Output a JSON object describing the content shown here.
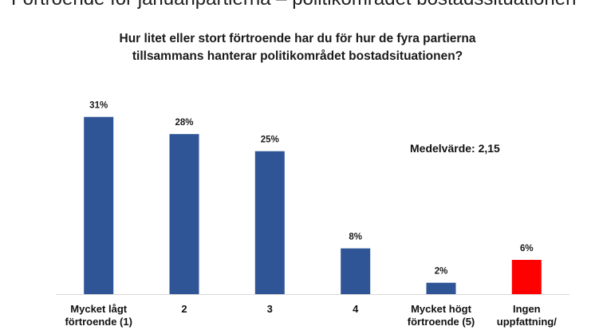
{
  "slide": {
    "title": "Förtroende för januaripartierna – politikområdet bostadssituationen"
  },
  "chart_data": {
    "type": "bar",
    "title_lines": [
      "Hur litet eller stort förtroende har du för hur de fyra partierna",
      "tillsammans hanterar politikområdet bostadsituationen?"
    ],
    "categories": [
      [
        "Mycket lågt",
        "förtroende (1)"
      ],
      [
        "2"
      ],
      [
        "3"
      ],
      [
        "4"
      ],
      [
        "Mycket högt",
        "förtroende (5)"
      ],
      [
        "Ingen",
        "uppfattning/"
      ]
    ],
    "values": [
      31,
      28,
      25,
      8,
      2,
      6
    ],
    "value_labels": [
      "31%",
      "28%",
      "25%",
      "8%",
      "2%",
      "6%"
    ],
    "unit": "%",
    "bar_colors": [
      "#2f5597",
      "#2f5597",
      "#2f5597",
      "#2f5597",
      "#2f5597",
      "#ff0000"
    ],
    "baseline_color": "#d9d9d9",
    "ylim": [
      0,
      35
    ],
    "xlabel": "",
    "ylabel": "",
    "grid": false,
    "legend": "none",
    "annotation": "Medelvärde: 2,15"
  }
}
